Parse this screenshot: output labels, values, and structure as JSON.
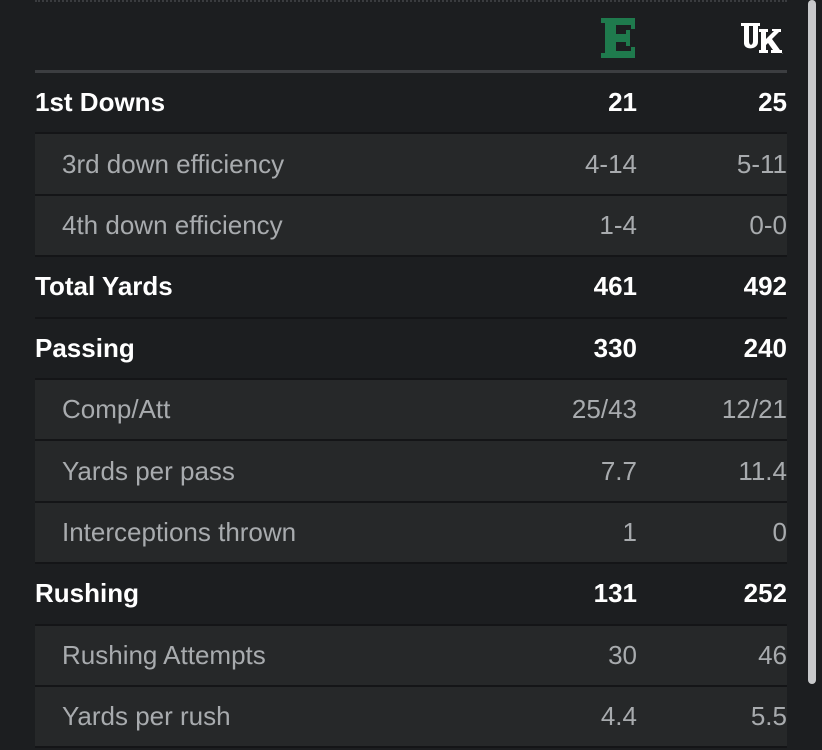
{
  "header": {
    "away_team_logo": "E",
    "home_team_logo": "UK",
    "away_logo_color": "#1f7a4d",
    "home_logo_color": "#ffffff"
  },
  "rows": [
    {
      "label": "1st Downs",
      "away": "21",
      "home": "25",
      "kind": "main"
    },
    {
      "label": "3rd down efficiency",
      "away": "4-14",
      "home": "5-11",
      "kind": "sub"
    },
    {
      "label": "4th down efficiency",
      "away": "1-4",
      "home": "0-0",
      "kind": "sub"
    },
    {
      "label": "Total Yards",
      "away": "461",
      "home": "492",
      "kind": "main"
    },
    {
      "label": "Passing",
      "away": "330",
      "home": "240",
      "kind": "main"
    },
    {
      "label": "Comp/Att",
      "away": "25/43",
      "home": "12/21",
      "kind": "sub"
    },
    {
      "label": "Yards per pass",
      "away": "7.7",
      "home": "11.4",
      "kind": "sub"
    },
    {
      "label": "Interceptions thrown",
      "away": "1",
      "home": "0",
      "kind": "sub"
    },
    {
      "label": "Rushing",
      "away": "131",
      "home": "252",
      "kind": "main"
    },
    {
      "label": "Rushing Attempts",
      "away": "30",
      "home": "46",
      "kind": "sub"
    },
    {
      "label": "Yards per rush",
      "away": "4.4",
      "home": "5.5",
      "kind": "sub"
    }
  ]
}
